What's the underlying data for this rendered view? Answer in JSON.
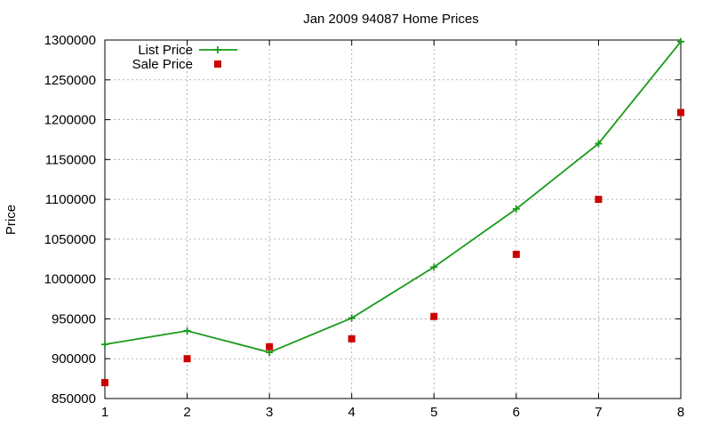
{
  "chart_data": {
    "type": "line",
    "title": "Jan 2009 94087 Home Prices",
    "xlabel": "",
    "ylabel": "Price",
    "xlim": [
      1,
      8
    ],
    "ylim": [
      850000,
      1300000
    ],
    "x_ticks": [
      1,
      2,
      3,
      4,
      5,
      6,
      7,
      8
    ],
    "y_ticks": [
      850000,
      900000,
      950000,
      1000000,
      1050000,
      1100000,
      1150000,
      1200000,
      1250000,
      1300000
    ],
    "grid": true,
    "legend_position": "top-left",
    "series": [
      {
        "name": "List Price",
        "style": "linespoints",
        "marker": "plus",
        "color": "#1a9a1a",
        "x": [
          1,
          2,
          3,
          4,
          5,
          6,
          7,
          8
        ],
        "values": [
          918000,
          935000,
          908000,
          951000,
          1015000,
          1088000,
          1170000,
          1298000
        ]
      },
      {
        "name": "Sale Price",
        "style": "points",
        "marker": "square",
        "color": "#cc0000",
        "x": [
          1,
          2,
          3,
          4,
          5,
          6,
          7,
          8
        ],
        "values": [
          870000,
          900000,
          915000,
          925000,
          953000,
          1031000,
          1100000,
          1209000
        ]
      }
    ]
  }
}
